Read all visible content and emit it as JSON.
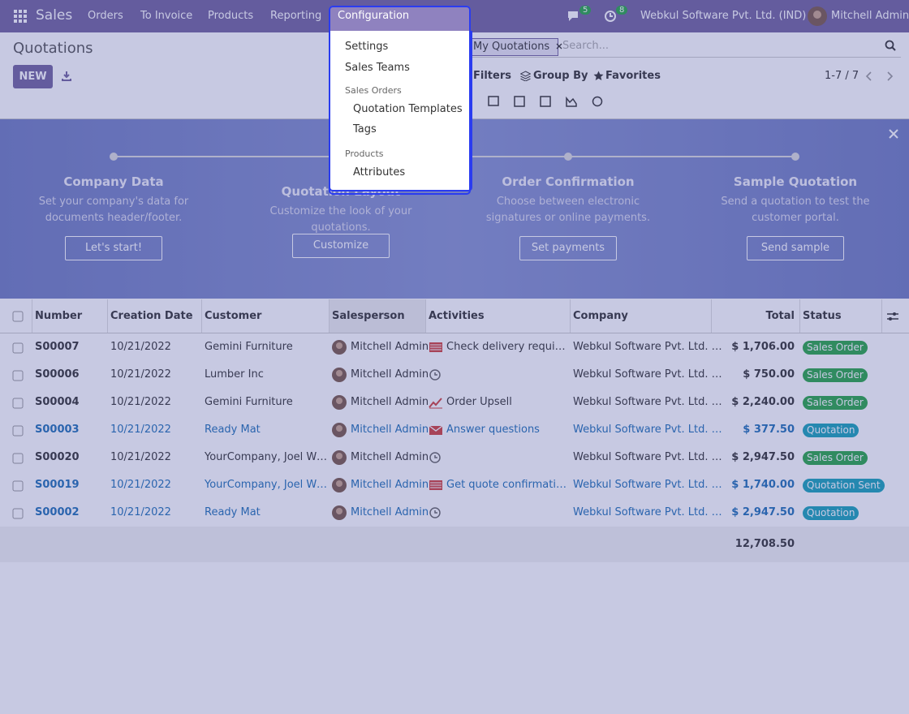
{
  "navbar": {
    "app": "Sales",
    "menu": [
      "Orders",
      "To Invoice",
      "Products",
      "Reporting",
      "Configuration"
    ],
    "message_count": 5,
    "activity_count": 8,
    "company": "Webkul Software Pvt. Ltd. (IND)",
    "user": "Mitchell Admin"
  },
  "configuration_menu": {
    "items": [
      "Settings",
      "Sales Teams"
    ],
    "sections": [
      {
        "title": "Sales Orders",
        "items": [
          "Quotation Templates",
          "Tags"
        ]
      },
      {
        "title": "Products",
        "items": [
          "Attributes"
        ]
      }
    ]
  },
  "control_panel": {
    "title": "Quotations",
    "new": "NEW",
    "facet": "My Quotations",
    "search_placeholder": "Search...",
    "filters": "Filters",
    "group_by": "Group By",
    "favorites": "Favorites",
    "pager": "1-7 / 7"
  },
  "onboarding": {
    "steps": [
      {
        "title": "Company Data",
        "description": "Set your company's data for documents header/footer.",
        "button": "Let's start!"
      },
      {
        "title": "Quotation Layout",
        "description": "Customize the look of your quotations.",
        "button": "Customize"
      },
      {
        "title": "Order Confirmation",
        "description": "Choose between electronic signatures or online payments.",
        "button": "Set payments"
      },
      {
        "title": "Sample Quotation",
        "description": "Send a quotation to test the customer portal.",
        "button": "Send sample"
      }
    ]
  },
  "table": {
    "columns": [
      "Number",
      "Creation Date",
      "Customer",
      "Salesperson",
      "Activities",
      "Company",
      "Total",
      "Status"
    ],
    "rows": [
      {
        "number": "S00007",
        "date": "10/21/2022",
        "customer": "Gemini Furniture",
        "salesperson": "Mitchell Admin",
        "activity_icon": "todo",
        "activity": "Check delivery require…",
        "company": "Webkul Software Pvt. Ltd. …",
        "total": "$ 1,706.00",
        "status": "Sales Order",
        "state": "sale"
      },
      {
        "number": "S00006",
        "date": "10/21/2022",
        "customer": "Lumber Inc",
        "salesperson": "Mitchell Admin",
        "activity_icon": "clock",
        "company": "Webkul Software Pvt. Ltd. …",
        "total": "$ 750.00",
        "status": "Sales Order",
        "state": "sale"
      },
      {
        "number": "S00004",
        "date": "10/21/2022",
        "customer": "Gemini Furniture",
        "salesperson": "Mitchell Admin",
        "activity_icon": "upsell",
        "activity": "Order Upsell",
        "company": "Webkul Software Pvt. Ltd. …",
        "total": "$ 2,240.00",
        "status": "Sales Order",
        "state": "sale"
      },
      {
        "number": "S00003",
        "date": "10/21/2022",
        "customer": "Ready Mat",
        "salesperson": "Mitchell Admin",
        "activity_icon": "email",
        "activity": "Answer questions",
        "company": "Webkul Software Pvt. Ltd. …",
        "total": "$ 377.50",
        "status": "Quotation",
        "state": "draft"
      },
      {
        "number": "S00020",
        "date": "10/21/2022",
        "customer": "YourCompany, Joel Willis",
        "salesperson": "Mitchell Admin",
        "activity_icon": "clock",
        "company": "Webkul Software Pvt. Ltd. …",
        "total": "$ 2,947.50",
        "status": "Sales Order",
        "state": "sale"
      },
      {
        "number": "S00019",
        "date": "10/21/2022",
        "customer": "YourCompany, Joel Willis",
        "salesperson": "Mitchell Admin",
        "activity_icon": "todo",
        "activity": "Get quote confirmation",
        "company": "Webkul Software Pvt. Ltd. …",
        "total": "$ 1,740.00",
        "status": "Quotation Sent",
        "state": "draft"
      },
      {
        "number": "S00002",
        "date": "10/21/2022",
        "customer": "Ready Mat",
        "salesperson": "Mitchell Admin",
        "activity_icon": "clock",
        "company": "Webkul Software Pvt. Ltd. …",
        "total": "$ 2,947.50",
        "status": "Quotation",
        "state": "draft"
      }
    ],
    "total": "12,708.50"
  }
}
